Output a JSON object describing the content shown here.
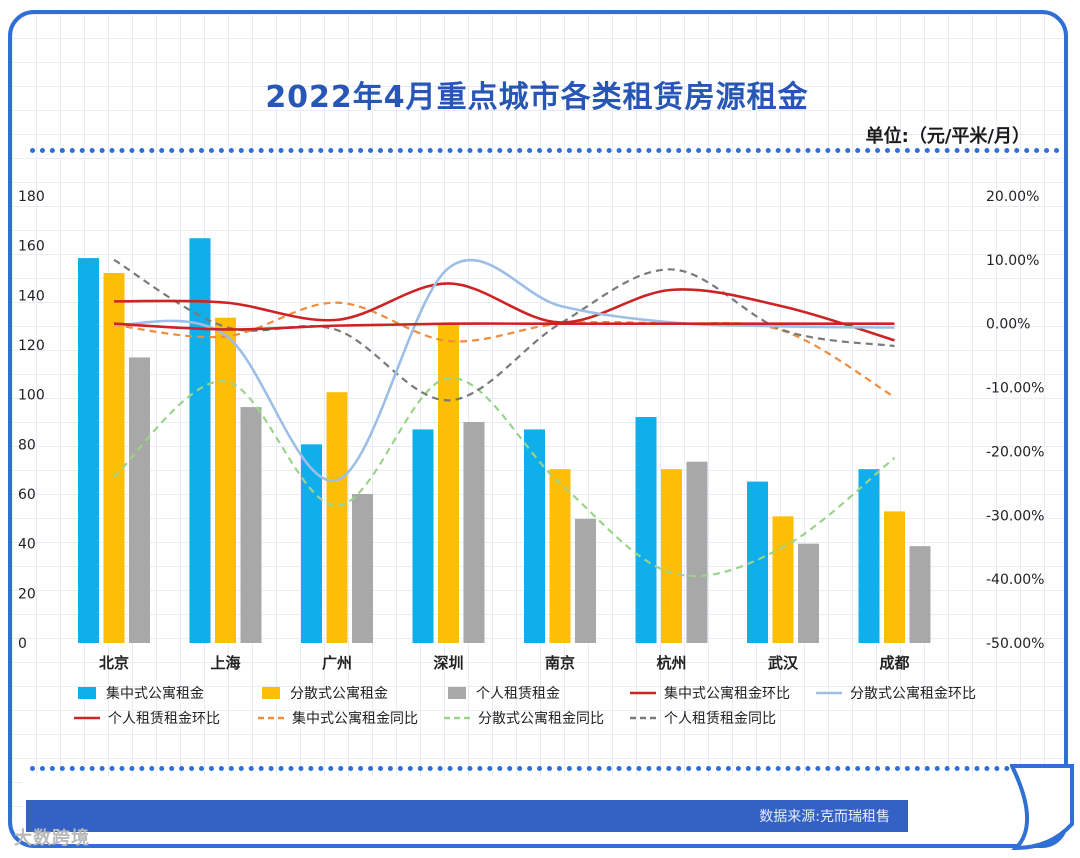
{
  "title": "2022年4月重点城市各类租赁房源租金",
  "unit_label": "单位:（元/平米/月）",
  "source": "数据来源:克而瑞租售",
  "watermark": "大数跨境",
  "colors": {
    "frame": "#2f6fd6",
    "title": "#2756b4",
    "source_bar": "#3462c4"
  },
  "chart_data": {
    "type": "bar",
    "categories": [
      "北京",
      "上海",
      "广州",
      "深圳",
      "南京",
      "杭州",
      "武汉",
      "成都"
    ],
    "y_left": {
      "ticks": [
        "0",
        "20",
        "40",
        "60",
        "80",
        "100",
        "120",
        "140",
        "160",
        "180"
      ],
      "range": [
        0,
        180
      ]
    },
    "y_right": {
      "ticks": [
        "20.00%",
        "10.00%",
        "0.00%",
        "-10.00%",
        "-20.00%",
        "-30.00%",
        "-40.00%",
        "-50.00%"
      ],
      "range": [
        -50,
        20
      ]
    },
    "bar_series": [
      {
        "name": "集中式公寓租金",
        "color": "#10aeea",
        "values": [
          155,
          163,
          80,
          86,
          86,
          91,
          65,
          70
        ]
      },
      {
        "name": "分散式公寓租金",
        "color": "#fcbe07",
        "values": [
          149,
          131,
          101,
          128,
          70,
          70,
          51,
          53
        ]
      },
      {
        "name": "个人租赁租金",
        "color": "#a8a8a8",
        "values": [
          115,
          95,
          60,
          89,
          50,
          73,
          40,
          39
        ]
      }
    ],
    "line_series": [
      {
        "name": "集中式公寓租金环比",
        "color": "#cc2424",
        "dash": false,
        "values": [
          3.5,
          3.3,
          0.6,
          6.3,
          0.2,
          5.3,
          2.7,
          -2.6
        ]
      },
      {
        "name": "分散式公寓租金环比",
        "color": "#9dbfe6",
        "dash": false,
        "values": [
          -0.2,
          -1.8,
          -24.5,
          8.7,
          2.8,
          0.2,
          -0.4,
          -0.6
        ]
      },
      {
        "name": "个人租赁租金环比",
        "color": "#cc2424",
        "dash": false,
        "values": [
          0.0,
          -0.9,
          -0.3,
          0.0,
          0.0,
          0.0,
          0.0,
          0.0
        ]
      },
      {
        "name": "集中式公寓租金同比",
        "color": "#f08c3c",
        "dash": true,
        "values": [
          -0.2,
          -2.0,
          3.3,
          -2.7,
          0.0,
          0.0,
          -1.1,
          -11.5
        ]
      },
      {
        "name": "分散式公寓租金同比",
        "color": "#9bd38a",
        "dash": true,
        "values": [
          -24.0,
          -9.0,
          -28.5,
          -8.5,
          -25.0,
          -39.0,
          -35.0,
          -21.0
        ]
      },
      {
        "name": "个人租赁租金同比",
        "color": "#7a7a7a",
        "dash": true,
        "values": [
          10.0,
          -0.5,
          -1.0,
          -12.0,
          0.0,
          8.5,
          -1.0,
          -3.5
        ]
      }
    ],
    "legend_position": "bottom"
  }
}
